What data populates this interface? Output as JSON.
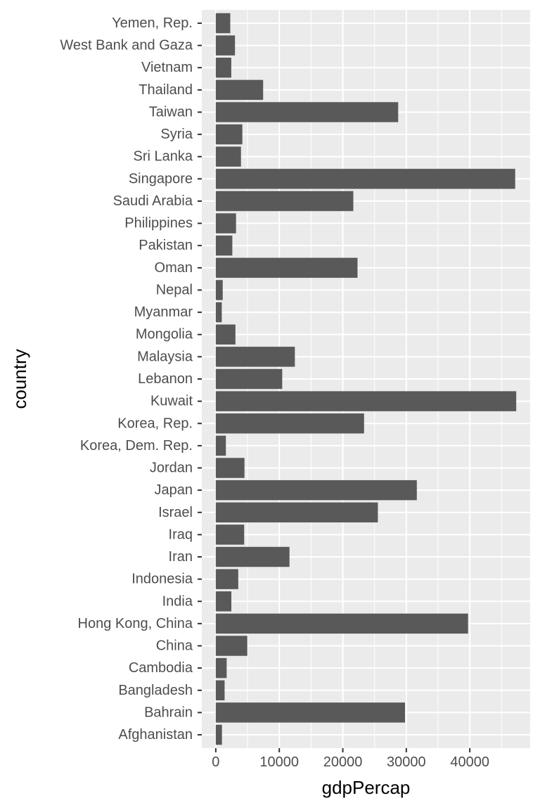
{
  "chart_data": {
    "type": "bar",
    "orientation": "horizontal",
    "xlabel": "gdpPercap",
    "ylabel": "country",
    "xlim": [
      -2200,
      49500
    ],
    "xticks": [
      0,
      10000,
      20000,
      30000,
      40000
    ],
    "xtick_labels": [
      "0",
      "10000",
      "20000",
      "30000",
      "40000"
    ],
    "grid": true,
    "legend": "none",
    "categories": [
      "Afghanistan",
      "Bahrain",
      "Bangladesh",
      "Cambodia",
      "China",
      "Hong Kong, China",
      "India",
      "Indonesia",
      "Iran",
      "Iraq",
      "Israel",
      "Japan",
      "Jordan",
      "Korea, Dem. Rep.",
      "Korea, Rep.",
      "Kuwait",
      "Lebanon",
      "Malaysia",
      "Mongolia",
      "Myanmar",
      "Nepal",
      "Oman",
      "Pakistan",
      "Philippines",
      "Saudi Arabia",
      "Singapore",
      "Sri Lanka",
      "Syria",
      "Taiwan",
      "Thailand",
      "Vietnam",
      "West Bank and Gaza",
      "Yemen, Rep."
    ],
    "values": [
      974.6,
      29796.0,
      1391.3,
      1713.8,
      4959.1,
      39724.9,
      2452.2,
      3540.7,
      11605.7,
      4471.1,
      25523.3,
      31656.1,
      4519.5,
      1593.1,
      23348.1,
      47306.9,
      10461.1,
      12451.7,
      3095.8,
      944.0,
      1091.4,
      22316.2,
      2605.9,
      3190.5,
      21654.8,
      47143.2,
      3970.1,
      4184.5,
      28718.3,
      7458.4,
      2441.6,
      3025.3,
      2280.8
    ]
  },
  "colors": {
    "panel_background": "#ebebeb",
    "grid_major": "#ffffff",
    "bar_fill": "#595959",
    "tick_text": "#4d4d4d",
    "tick_mark": "#333333",
    "axis_title": "#000000"
  }
}
